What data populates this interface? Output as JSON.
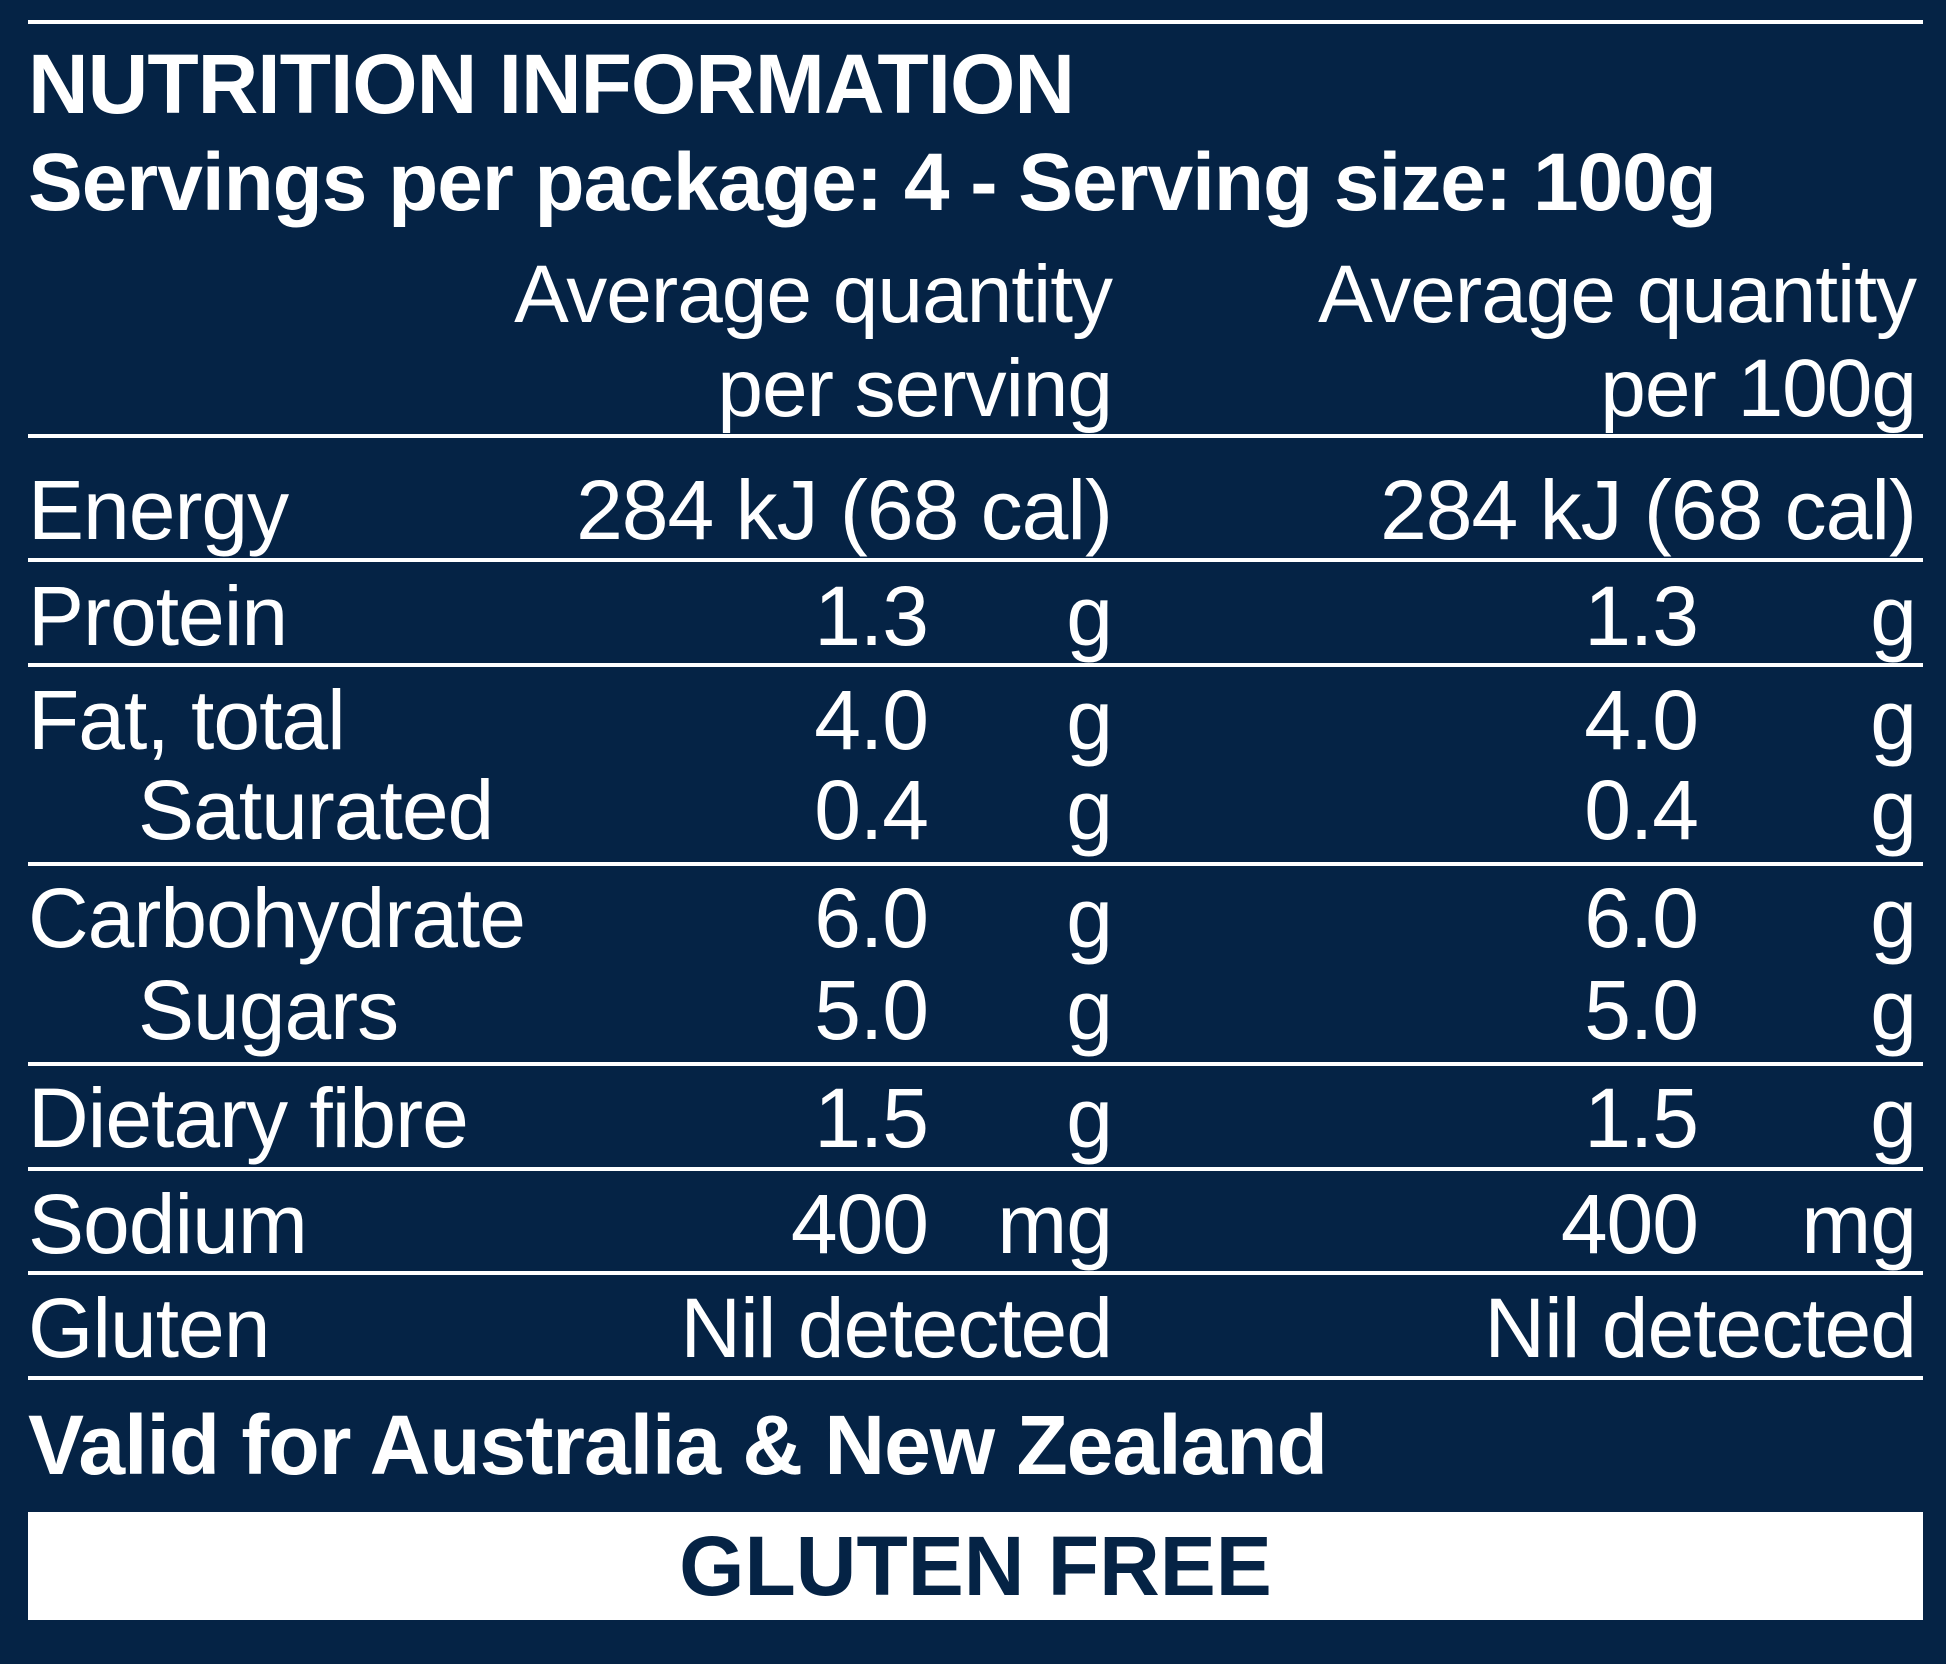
{
  "panel": {
    "title": "NUTRITION INFORMATION",
    "servings_line": "Servings per package: 4 - Serving size: 100g"
  },
  "columns": {
    "per_serving": [
      "Average quantity",
      "per serving"
    ],
    "per_100g": [
      "Average quantity",
      "per 100g"
    ]
  },
  "rows": [
    {
      "label": "Energy",
      "per_serving": "284 kJ (68 cal)",
      "per_100g": "284 kJ (68 cal)"
    },
    {
      "label": "Protein",
      "per_serving_value": "1.3",
      "per_serving_unit": "g",
      "per_100g_value": "1.3",
      "per_100g_unit": "g"
    },
    {
      "label": "Fat, total",
      "per_serving_value": "4.0",
      "per_serving_unit": "g",
      "per_100g_value": "4.0",
      "per_100g_unit": "g"
    },
    {
      "label": "Saturated",
      "per_serving_value": "0.4",
      "per_serving_unit": "g",
      "per_100g_value": "0.4",
      "per_100g_unit": "g"
    },
    {
      "label": "Carbohydrate",
      "per_serving_value": "6.0",
      "per_serving_unit": "g",
      "per_100g_value": "6.0",
      "per_100g_unit": "g"
    },
    {
      "label": "Sugars",
      "per_serving_value": "5.0",
      "per_serving_unit": "g",
      "per_100g_value": "5.0",
      "per_100g_unit": "g"
    },
    {
      "label": "Dietary fibre",
      "per_serving_value": "1.5",
      "per_serving_unit": "g",
      "per_100g_value": "1.5",
      "per_100g_unit": "g"
    },
    {
      "label": "Sodium",
      "per_serving_value": "400",
      "per_serving_unit": "mg",
      "per_100g_value": "400",
      "per_100g_unit": "mg"
    },
    {
      "label": "Gluten",
      "per_serving": "Nil detected",
      "per_100g": "Nil detected"
    }
  ],
  "footer": {
    "validity": "Valid for Australia & New Zealand",
    "banner": "GLUTEN FREE"
  },
  "colors": {
    "background": "#052345",
    "text": "#ffffff",
    "banner_text": "#052345"
  }
}
